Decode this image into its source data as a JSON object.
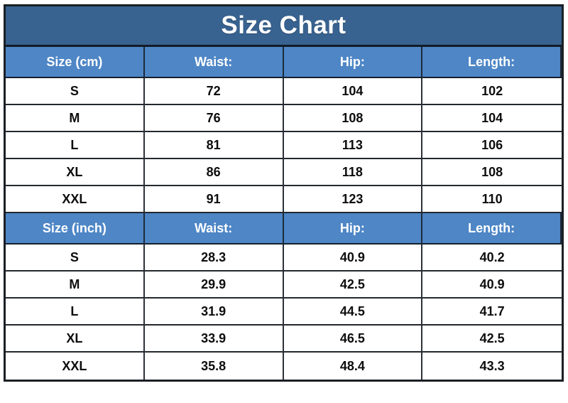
{
  "title": "Size Chart",
  "colors": {
    "title_bg": "#38628F",
    "header_bg": "#4E86C6",
    "border": "#1a1f24",
    "header_text": "#ffffff",
    "body_text": "#0d0d0d",
    "page_bg": "#ffffff"
  },
  "chart_data": {
    "type": "table",
    "title": "Size Chart",
    "layout": {
      "columns": 4,
      "grid": true,
      "text_align": "center"
    },
    "sections": [
      {
        "unit": "cm",
        "headers": [
          "Size (cm)",
          "Waist:",
          "Hip:",
          "Length:"
        ],
        "rows": [
          [
            "S",
            "72",
            "104",
            "102"
          ],
          [
            "M",
            "76",
            "108",
            "104"
          ],
          [
            "L",
            "81",
            "113",
            "106"
          ],
          [
            "XL",
            "86",
            "118",
            "108"
          ],
          [
            "XXL",
            "91",
            "123",
            "110"
          ]
        ]
      },
      {
        "unit": "inch",
        "headers": [
          "Size (inch)",
          "Waist:",
          "Hip:",
          "Length:"
        ],
        "rows": [
          [
            "S",
            "28.3",
            "40.9",
            "40.2"
          ],
          [
            "M",
            "29.9",
            "42.5",
            "40.9"
          ],
          [
            "L",
            "31.9",
            "44.5",
            "41.7"
          ],
          [
            "XL",
            "33.9",
            "46.5",
            "42.5"
          ],
          [
            "XXL",
            "35.8",
            "48.4",
            "43.3"
          ]
        ]
      }
    ]
  }
}
